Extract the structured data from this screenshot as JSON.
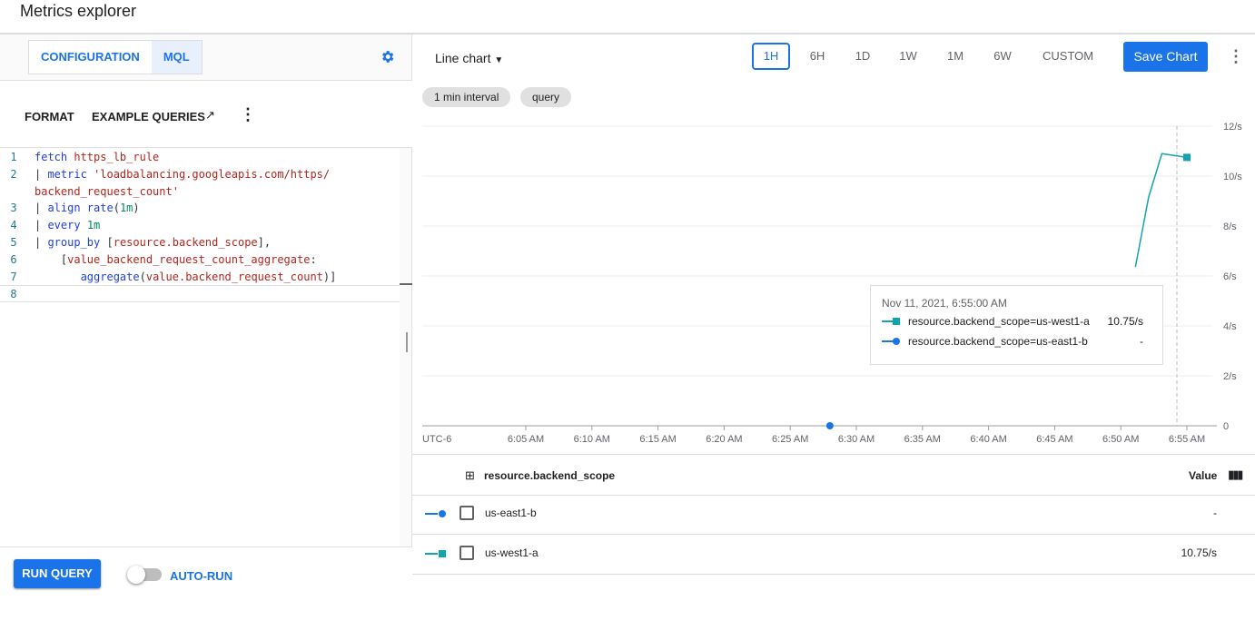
{
  "title": "Metrics explorer",
  "left": {
    "tabs": [
      {
        "label": "CONFIGURATION",
        "selected": false
      },
      {
        "label": "MQL",
        "selected": true
      }
    ],
    "format_label": "FORMAT",
    "example_queries_label": "EXAMPLE QUERIES",
    "code_lines": [
      {
        "num": "1",
        "tokens": [
          [
            "k",
            "fetch "
          ],
          [
            "s",
            "https_lb_rule"
          ]
        ]
      },
      {
        "num": "2",
        "tokens": [
          [
            "p",
            "| "
          ],
          [
            "k",
            "metric "
          ],
          [
            "s",
            "'loadbalancing.googleapis.com/https/"
          ]
        ]
      },
      {
        "num": "",
        "tokens": [
          [
            "s",
            "backend_request_count'"
          ]
        ]
      },
      {
        "num": "3",
        "tokens": [
          [
            "p",
            "| "
          ],
          [
            "k",
            "align rate"
          ],
          [
            "p",
            "("
          ],
          [
            "n",
            "1m"
          ],
          [
            "p",
            ")"
          ]
        ]
      },
      {
        "num": "4",
        "tokens": [
          [
            "p",
            "| "
          ],
          [
            "k",
            "every "
          ],
          [
            "n",
            "1m"
          ]
        ]
      },
      {
        "num": "5",
        "tokens": [
          [
            "p",
            "| "
          ],
          [
            "k",
            "group_by "
          ],
          [
            "p",
            "["
          ],
          [
            "s",
            "resource.backend_scope"
          ],
          [
            "p",
            "],"
          ]
        ]
      },
      {
        "num": "6",
        "tokens": [
          [
            "p",
            "    ["
          ],
          [
            "s",
            "value_backend_request_count_aggregate"
          ],
          [
            "p",
            ":"
          ]
        ]
      },
      {
        "num": "7",
        "tokens": [
          [
            "p",
            "       "
          ],
          [
            "k",
            "aggregate"
          ],
          [
            "p",
            "("
          ],
          [
            "s",
            "value.backend_request_count"
          ],
          [
            "p",
            ")]"
          ]
        ]
      },
      {
        "num": "8",
        "tokens": []
      }
    ],
    "run_query_label": "RUN QUERY",
    "auto_run_label": "AUTO-RUN",
    "auto_run_on": false
  },
  "toolbar": {
    "chart_type": "Line chart",
    "ranges": [
      "1H",
      "6H",
      "1D",
      "1W",
      "1M",
      "6W",
      "CUSTOM"
    ],
    "selected_range": "1H",
    "save_label": "Save Chart"
  },
  "chips": [
    "1 min interval",
    "query"
  ],
  "tooltip": {
    "time": "Nov 11, 2021, 6:55:00 AM",
    "rows": [
      {
        "label": "resource.backend_scope=us-west1-a",
        "value": "10.75/s",
        "color": "#12a4af",
        "marker": "square"
      },
      {
        "label": "resource.backend_scope=us-east1-b",
        "value": "-",
        "color": "#1a73e8",
        "marker": "circle"
      }
    ]
  },
  "chart_data": {
    "type": "line",
    "xlabel": "",
    "ylabel": "",
    "timezone_label": "UTC-6",
    "x_ticks": [
      "6:05 AM",
      "6:10 AM",
      "6:15 AM",
      "6:20 AM",
      "6:25 AM",
      "6:30 AM",
      "6:35 AM",
      "6:40 AM",
      "6:45 AM",
      "6:50 AM",
      "6:55 AM"
    ],
    "y_ticks": [
      "0",
      "2/s",
      "4/s",
      "6/s",
      "8/s",
      "10/s",
      "12/s"
    ],
    "ylim": [
      0,
      12
    ],
    "xlim": [
      "5:57 AM",
      "6:57 AM"
    ],
    "grid": true,
    "series": [
      {
        "name": "us-west1-a",
        "color": "#12a4af",
        "x": [
          "6:52 AM",
          "6:53 AM",
          "6:54 AM",
          "6:55 AM"
        ],
        "y": [
          6.36,
          9.16,
          10.9,
          10.75
        ]
      },
      {
        "name": "us-east1-b",
        "color": "#1a73e8",
        "x": [
          "6:28 AM"
        ],
        "y": [
          0
        ]
      }
    ],
    "cursor": "6:55 AM"
  },
  "table": {
    "col1": "resource.backend_scope",
    "col2": "Value",
    "rows": [
      {
        "name": "us-east1-b",
        "value": "-",
        "color": "#1a73e8",
        "marker": "circle"
      },
      {
        "name": "us-west1-a",
        "value": "10.75/s",
        "color": "#12a4af",
        "marker": "square"
      }
    ]
  }
}
